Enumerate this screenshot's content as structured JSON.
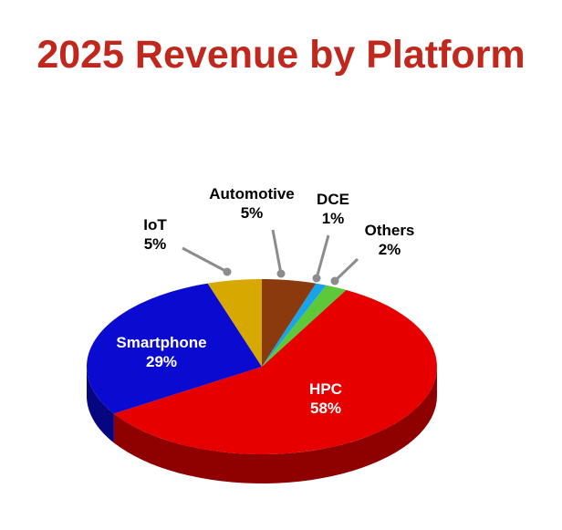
{
  "chart_data": {
    "type": "pie",
    "style": "3d",
    "title": "2025 Revenue by Platform",
    "slices": [
      {
        "label": "Automotive",
        "value": 5,
        "display": "5%",
        "color": "#8a3a0c"
      },
      {
        "label": "DCE",
        "value": 1,
        "display": "1%",
        "color": "#1aa3e8"
      },
      {
        "label": "Others",
        "value": 2,
        "display": "2%",
        "color": "#5cc83a"
      },
      {
        "label": "HPC",
        "value": 58,
        "display": "58%",
        "color": "#e60000"
      },
      {
        "label": "Smartphone",
        "value": 29,
        "display": "29%",
        "color": "#0a0ad0"
      },
      {
        "label": "IoT",
        "value": 5,
        "display": "5%",
        "color": "#d6a800"
      }
    ]
  }
}
